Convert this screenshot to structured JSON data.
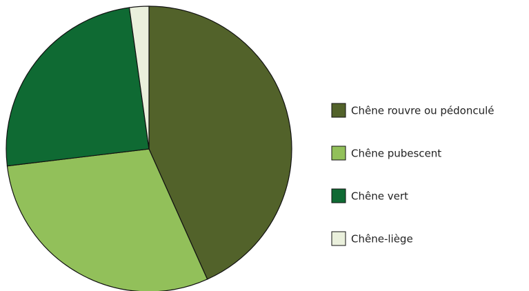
{
  "chart_data": {
    "type": "pie",
    "categories": [
      "Chêne rouvre ou pédonculé",
      "Chêne pubescent",
      "Chêne vert",
      "Chêne-liège"
    ],
    "values": [
      43.3,
      29.8,
      24.7,
      2.2
    ],
    "colors": [
      "#52622a",
      "#92c05a",
      "#0f6a33",
      "#eaf0dc"
    ],
    "legend": "right"
  }
}
